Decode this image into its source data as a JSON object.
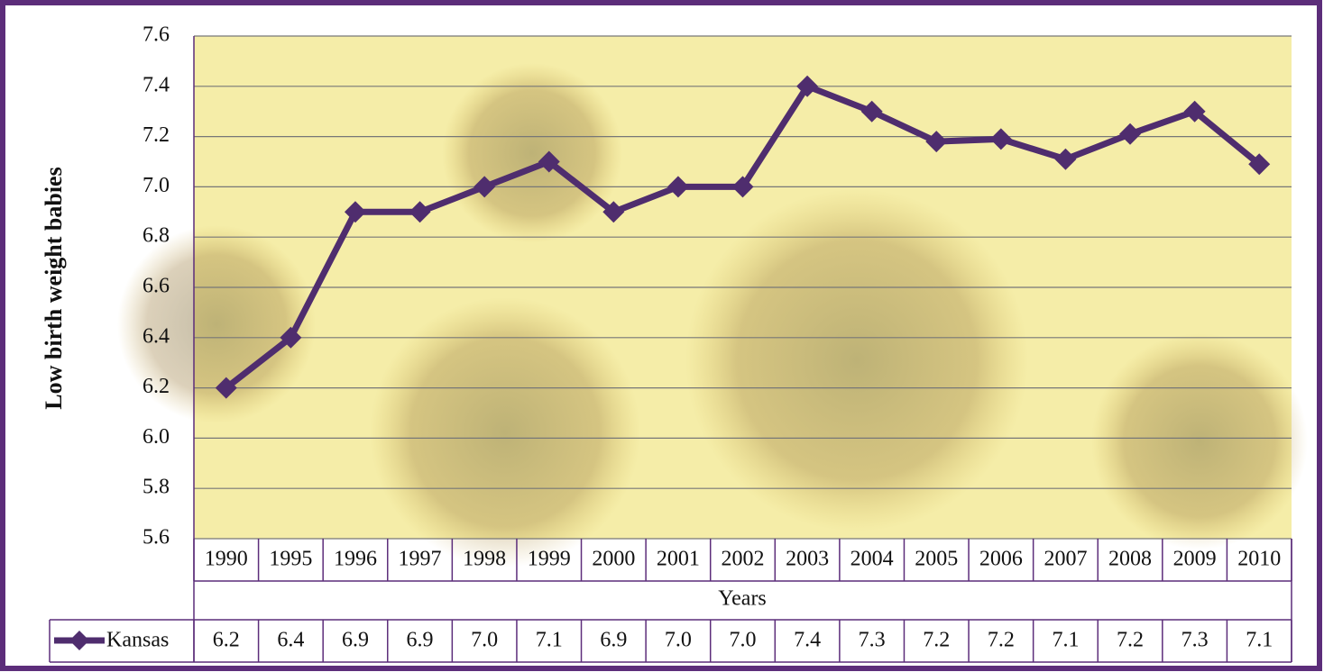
{
  "chart_data": {
    "type": "line",
    "y_label": "Low birth weight babies",
    "x_label": "Years",
    "categories": [
      "1990",
      "1995",
      "1996",
      "1997",
      "1998",
      "1999",
      "2000",
      "2001",
      "2002",
      "2003",
      "2004",
      "2005",
      "2006",
      "2007",
      "2008",
      "2009",
      "2010"
    ],
    "series": [
      {
        "name": "Kansas",
        "color": "#4f2d6e",
        "values": [
          6.2,
          6.4,
          6.9,
          6.9,
          7.0,
          7.1,
          6.9,
          7.0,
          7.0,
          7.4,
          7.3,
          7.18,
          7.19,
          7.11,
          7.21,
          7.3,
          7.09
        ],
        "value_labels": [
          "6.2",
          "6.4",
          "6.9",
          "6.9",
          "7.0",
          "7.1",
          "6.9",
          "7.0",
          "7.0",
          "7.4",
          "7.3",
          "7.2",
          "7.2",
          "7.1",
          "7.2",
          "7.3",
          "7.1"
        ]
      }
    ],
    "ylim": [
      5.6,
      7.6
    ],
    "yticks": [
      5.6,
      5.8,
      {
        "value": 6,
        "label": "6.0"
      },
      6.2,
      6.4,
      6.6,
      6.8,
      {
        "value": 7,
        "label": "7.0"
      },
      7.2,
      7.4,
      7.6
    ],
    "grid": true
  }
}
